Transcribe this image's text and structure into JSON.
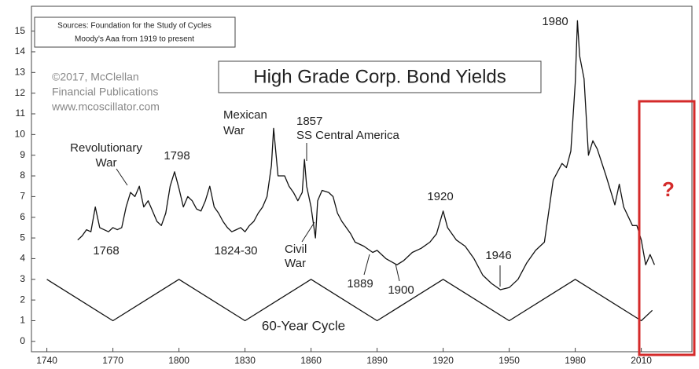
{
  "chart_data": {
    "type": "line",
    "title": "High Grade Corp. Bond Yields",
    "sources": [
      "Sources: Foundation for the Study of Cycles",
      "Moody's Aaa from 1919 to present"
    ],
    "credit": [
      "©2017, McClellan",
      "Financial Publications",
      "www.mcoscillator.com"
    ],
    "cycle_label": "60-Year Cycle",
    "question": "?",
    "annotations": [
      [
        "Revolutionary",
        "War"
      ],
      [
        "1798"
      ],
      [
        "1768"
      ],
      [
        "1824-30"
      ],
      [
        "Mexican",
        "War"
      ],
      [
        "1857",
        "SS Central America"
      ],
      [
        "Civil",
        "War"
      ],
      [
        "1889"
      ],
      [
        "1900"
      ],
      [
        "1920"
      ],
      [
        "1946"
      ],
      [
        "1980"
      ]
    ],
    "xlim": [
      1733,
      2033
    ],
    "xticks": [
      1740,
      1770,
      1800,
      1830,
      1860,
      1890,
      1920,
      1950,
      1980,
      2010
    ],
    "ylim": [
      -0.5,
      16.2
    ],
    "yticks": [
      0,
      1,
      2,
      3,
      4,
      5,
      6,
      7,
      8,
      9,
      10,
      11,
      12,
      13,
      14,
      15
    ],
    "grid": false,
    "series": [
      {
        "color": "#111111",
        "x": [
          1754,
          1756,
          1758,
          1760,
          1762,
          1764,
          1766,
          1768,
          1770,
          1772,
          1774,
          1776,
          1778,
          1780,
          1782,
          1784,
          1786,
          1788,
          1790,
          1792,
          1794,
          1796,
          1798,
          1800,
          1802,
          1804,
          1806,
          1808,
          1810,
          1812,
          1814,
          1816,
          1818,
          1820,
          1822,
          1824,
          1826,
          1828,
          1830,
          1832,
          1834,
          1836,
          1838,
          1840,
          1842,
          1843,
          1845,
          1848,
          1850,
          1852,
          1854,
          1856,
          1857,
          1858,
          1860,
          1862,
          1863,
          1865,
          1868,
          1870,
          1872,
          1874,
          1876,
          1878,
          1880,
          1884,
          1888,
          1890,
          1894,
          1899,
          1902,
          1906,
          1910,
          1914,
          1917,
          1920,
          1922,
          1926,
          1930,
          1934,
          1938,
          1942,
          1946,
          1950,
          1954,
          1958,
          1962,
          1966,
          1970,
          1974,
          1976,
          1978,
          1980,
          1981,
          1982,
          1984,
          1986,
          1988,
          1990,
          1994,
          1998,
          2000,
          2002,
          2006,
          2008,
          2010,
          2012,
          2014,
          2016
        ],
        "values": [
          4.9,
          5.1,
          5.4,
          5.3,
          6.5,
          5.5,
          5.4,
          5.3,
          5.5,
          5.4,
          5.5,
          6.5,
          7.2,
          7.0,
          7.5,
          6.5,
          6.8,
          6.3,
          5.8,
          5.6,
          6.2,
          7.5,
          8.2,
          7.4,
          6.5,
          7.0,
          6.8,
          6.4,
          6.3,
          6.8,
          7.5,
          6.5,
          6.2,
          5.8,
          5.5,
          5.3,
          5.4,
          5.5,
          5.3,
          5.6,
          5.8,
          6.2,
          6.5,
          7.0,
          8.5,
          10.3,
          8.0,
          8.0,
          7.5,
          7.2,
          6.8,
          7.2,
          8.8,
          7.5,
          6.5,
          5.0,
          6.8,
          7.3,
          7.2,
          7.0,
          6.2,
          5.8,
          5.5,
          5.2,
          4.8,
          4.6,
          4.3,
          4.4,
          4.0,
          3.7,
          3.9,
          4.3,
          4.5,
          4.8,
          5.2,
          6.3,
          5.5,
          4.9,
          4.6,
          4.0,
          3.2,
          2.8,
          2.5,
          2.6,
          3.0,
          3.8,
          4.4,
          4.8,
          7.8,
          8.6,
          8.4,
          9.2,
          12.5,
          15.5,
          13.8,
          12.7,
          9.0,
          9.7,
          9.3,
          8.0,
          6.6,
          7.6,
          6.5,
          5.6,
          5.6,
          4.9,
          3.7,
          4.2,
          3.7
        ]
      },
      {
        "color": "#111111",
        "x": [
          1740,
          1770,
          1800,
          1830,
          1860,
          1890,
          1920,
          1950,
          1980,
          2010,
          2015
        ],
        "values": [
          3,
          1,
          3,
          1,
          3,
          1,
          3,
          1,
          3,
          1,
          1.5
        ]
      }
    ],
    "box_color": "#d42a2a"
  }
}
